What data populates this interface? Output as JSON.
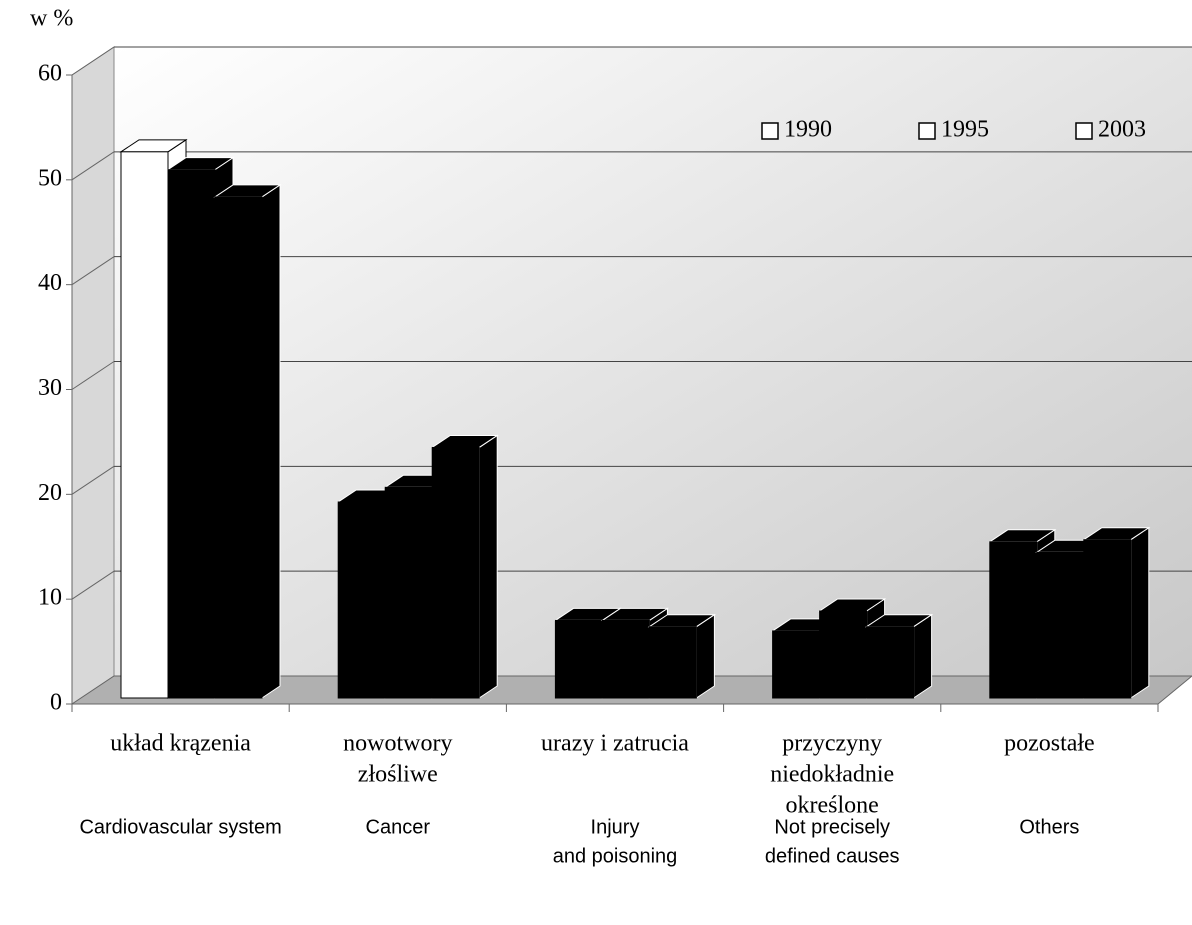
{
  "chart_data": {
    "type": "bar3d",
    "y_label": "w %",
    "categories": [
      [
        "układ krązenia"
      ],
      [
        "nowotwory",
        "złośliwe"
      ],
      [
        "urazy i zatrucia"
      ],
      [
        "przyczyny",
        "niedokładnie",
        "określone"
      ],
      [
        "pozostałe"
      ]
    ],
    "categories_en": [
      [
        "Cardiovascular system"
      ],
      [
        "Cancer"
      ],
      [
        "Injury",
        "and  poisoning"
      ],
      [
        "Not precisely",
        "defined causes"
      ],
      [
        "Others"
      ]
    ],
    "series": [
      {
        "name": "1990",
        "colors": [
          "#ffffff",
          "#000000",
          "#000000",
          "#000000",
          "#000000"
        ],
        "values": [
          52.1,
          18.7,
          7.4,
          6.4,
          14.9
        ]
      },
      {
        "name": "1995",
        "color": "#000000",
        "values": [
          50.4,
          20.1,
          7.4,
          8.3,
          13.9
        ]
      },
      {
        "name": "2003",
        "color": "#000000",
        "values": [
          47.8,
          23.9,
          6.8,
          6.8,
          15.1
        ]
      }
    ],
    "ylim": [
      0,
      60
    ],
    "yticks": [
      0,
      10,
      20,
      30,
      40,
      50,
      60
    ],
    "grid": true,
    "legend": "top-right"
  }
}
